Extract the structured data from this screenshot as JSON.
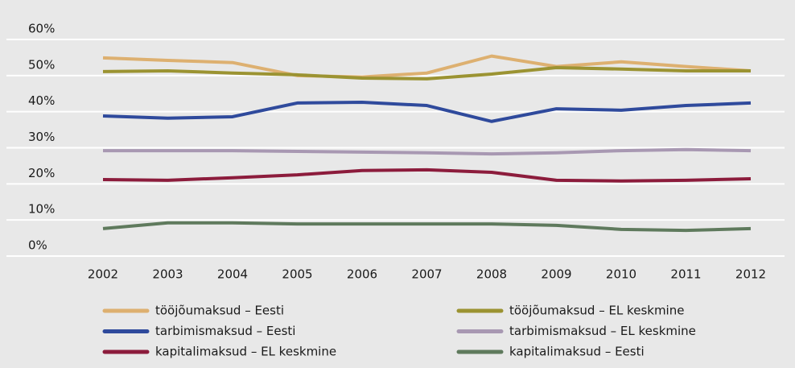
{
  "chart_data": {
    "type": "line",
    "categories": [
      "2002",
      "2003",
      "2004",
      "2005",
      "2006",
      "2007",
      "2008",
      "2009",
      "2010",
      "2011",
      "2012"
    ],
    "series": [
      {
        "name": "tööjõumaksud – Eesti",
        "color": "#ddb070",
        "values": [
          54.9,
          54.2,
          53.6,
          50.0,
          49.6,
          50.7,
          55.4,
          52.5,
          53.8,
          52.5,
          51.3
        ]
      },
      {
        "name": "tööjõumaksud – EL keskmine",
        "color": "#9b9332",
        "values": [
          51.1,
          51.3,
          50.7,
          50.2,
          49.3,
          49.1,
          50.4,
          52.2,
          51.8,
          51.3,
          51.3
        ]
      },
      {
        "name": "tarbimismaksud – Eesti",
        "color": "#2f4a9c",
        "values": [
          38.8,
          38.2,
          38.6,
          42.4,
          42.6,
          41.7,
          37.3,
          40.8,
          40.4,
          41.7,
          42.4
        ]
      },
      {
        "name": "tarbimismaksud – EL keskmine",
        "color": "#a898b2",
        "values": [
          29.2,
          29.2,
          29.2,
          29.0,
          28.8,
          28.6,
          28.3,
          28.6,
          29.2,
          29.5,
          29.2
        ]
      },
      {
        "name": "kapitalimaksud – EL keskmine",
        "color": "#8c1c3c",
        "values": [
          21.2,
          21.0,
          21.7,
          22.5,
          23.7,
          23.9,
          23.2,
          21.0,
          20.8,
          21.0,
          21.4
        ]
      },
      {
        "name": "kapitalimaksud – Eesti",
        "color": "#5f7a5d",
        "values": [
          7.6,
          9.2,
          9.2,
          8.9,
          8.9,
          8.9,
          8.9,
          8.5,
          7.4,
          7.1,
          7.6
        ]
      }
    ],
    "ylim": [
      0,
      60
    ],
    "yticks": [
      {
        "value": 0,
        "label": "0%"
      },
      {
        "value": 10,
        "label": "10%"
      },
      {
        "value": 20,
        "label": "20%"
      },
      {
        "value": 30,
        "label": "30%"
      },
      {
        "value": 40,
        "label": "40%"
      },
      {
        "value": 50,
        "label": "50%"
      },
      {
        "value": 60,
        "label": "60%"
      }
    ],
    "grid": true
  }
}
